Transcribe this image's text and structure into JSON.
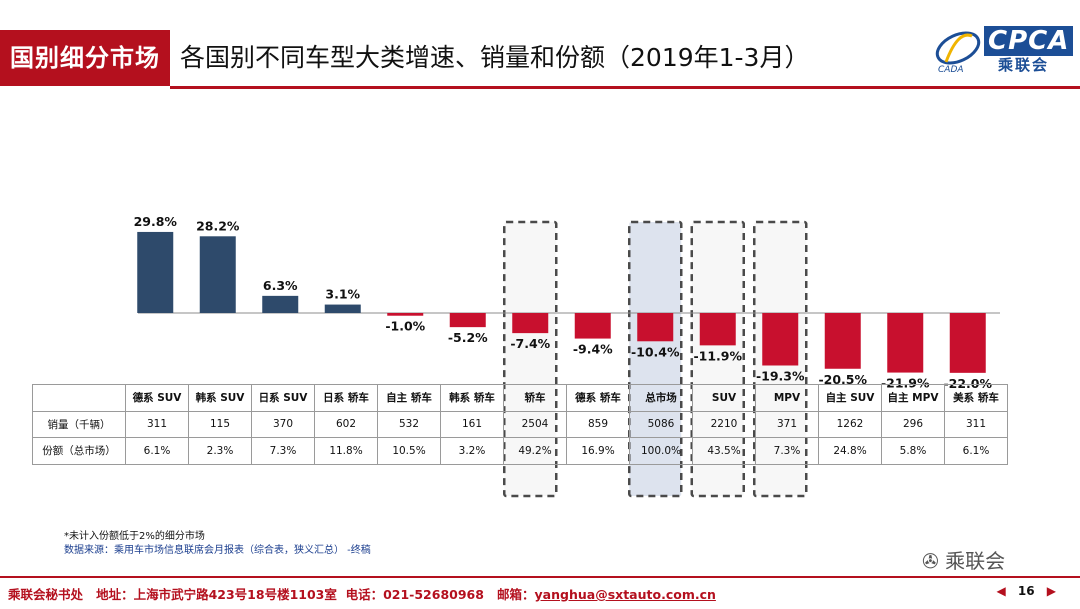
{
  "header": {
    "section": "国别细分市场",
    "title": "各国别不同车型大类增速、销量和份额（2019年1-3月）",
    "logo_text": "CPCA",
    "logo_cn": "乘联会"
  },
  "chart_data": {
    "type": "bar",
    "categories": [
      "德系 SUV",
      "韩系 SUV",
      "日系 SUV",
      "日系 轿车",
      "自主 轿车",
      "韩系 轿车",
      "轿车",
      "德系 轿车",
      "总市场",
      "SUV",
      "MPV",
      "自主 SUV",
      "自主 MPV",
      "美系 轿车"
    ],
    "values": [
      29.8,
      28.2,
      6.3,
      3.1,
      -1.0,
      -5.2,
      -7.4,
      -9.4,
      -10.4,
      -11.9,
      -19.3,
      -20.5,
      -21.9,
      -22.0
    ],
    "value_labels": [
      "29.8%",
      "28.2%",
      "6.3%",
      "3.1%",
      "-1.0%",
      "-5.2%",
      "-7.4%",
      "-9.4%",
      "-10.4%",
      "-11.9%",
      "-19.3%",
      "-20.5%",
      "-21.9%",
      "-22.0%"
    ],
    "highlighted": [
      "轿车",
      "总市场",
      "SUV",
      "MPV"
    ],
    "shaded": [
      "总市场"
    ],
    "colors": {
      "positive": "#2e4a6b",
      "negative": "#c8102e",
      "box": "#4a4a4a",
      "shade": "#dde3ee"
    },
    "ylim": [
      -25,
      32
    ]
  },
  "table": {
    "rows": [
      {
        "label": "销量（千辆）",
        "values": [
          "311",
          "115",
          "370",
          "602",
          "532",
          "161",
          "2504",
          "859",
          "5086",
          "2210",
          "371",
          "1262",
          "296",
          "311"
        ]
      },
      {
        "label": "份额（总市场）",
        "values": [
          "6.1%",
          "2.3%",
          "7.3%",
          "11.8%",
          "10.5%",
          "3.2%",
          "49.2%",
          "16.9%",
          "100.0%",
          "43.5%",
          "7.3%",
          "24.8%",
          "5.8%",
          "6.1%"
        ]
      }
    ]
  },
  "notes": {
    "line1": "*未计入份额低于2%的细分市场",
    "line2": "数据来源：乘用车市场信息联席会月报表（综合表，狭义汇总）  -终稿"
  },
  "watermark": "乘联会",
  "footer": {
    "org": "乘联会秘书处",
    "address": "地址：上海市武宁路423号18号楼1103室",
    "phone": "电话：021-52680968",
    "email_label": "邮箱：",
    "email": "yanghua@sxtauto.com.cn",
    "page": "16"
  }
}
